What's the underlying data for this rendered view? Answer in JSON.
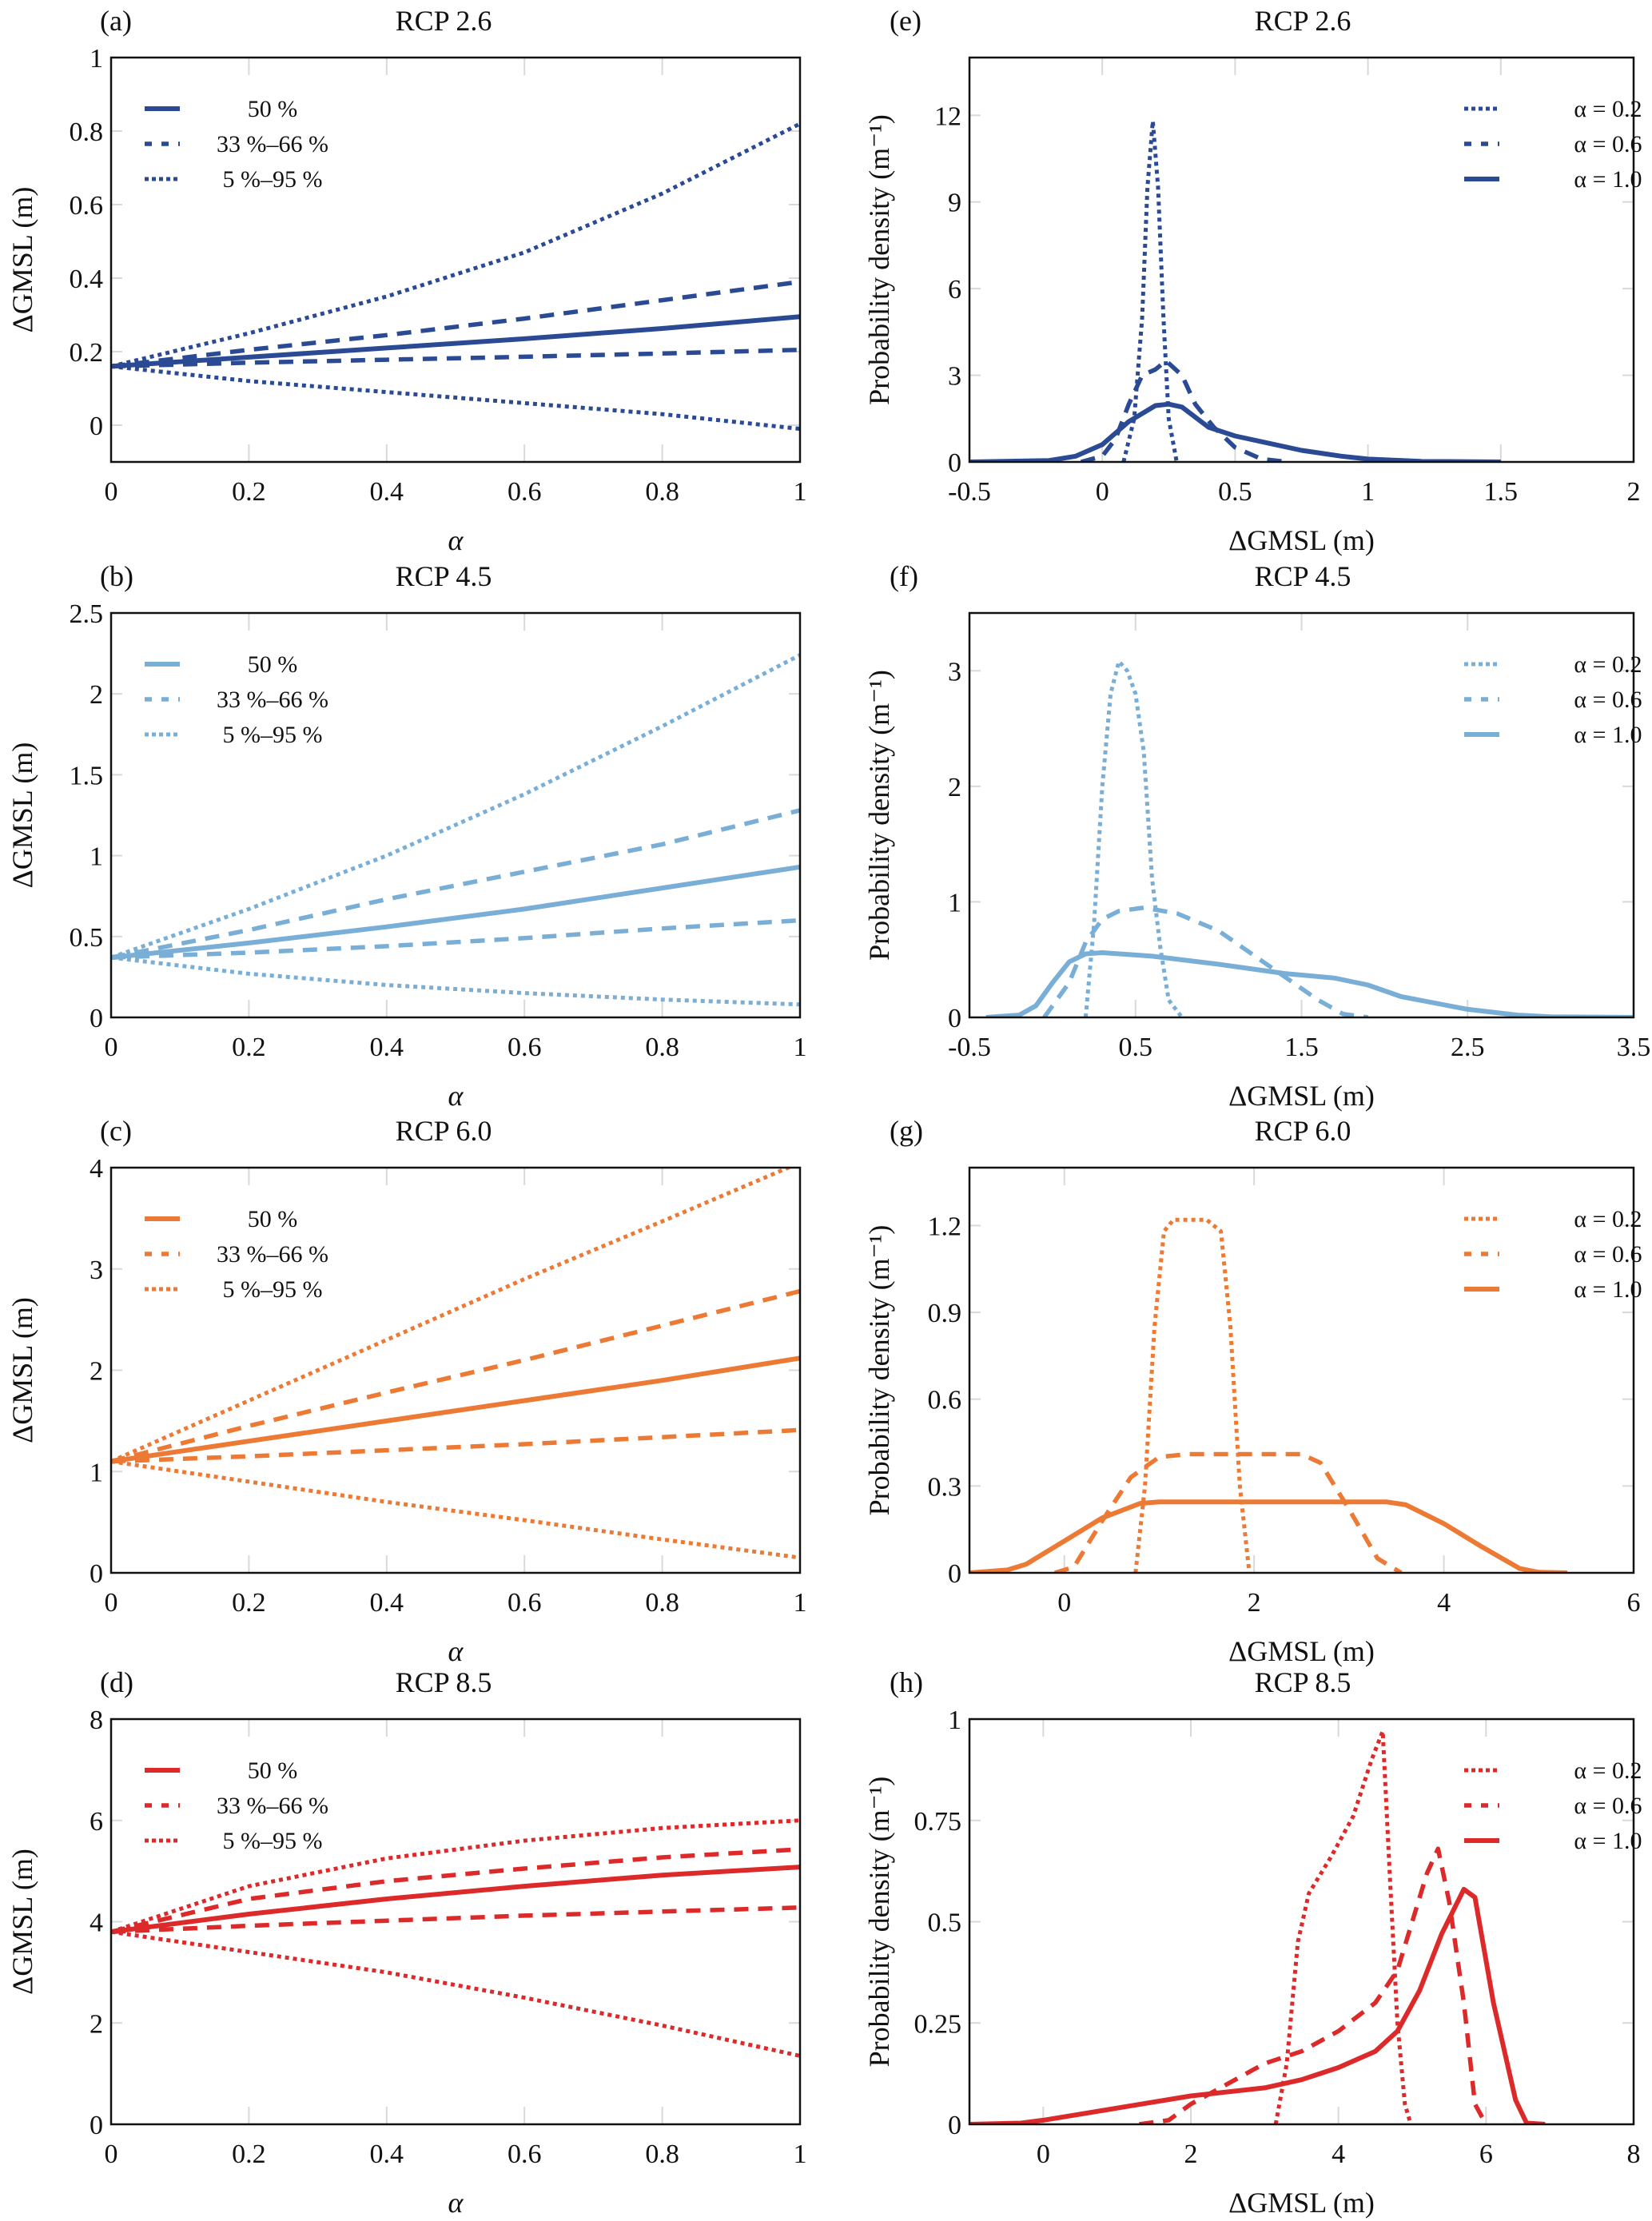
{
  "figure": {
    "colors": {
      "rcp26": "#2b4a94",
      "rcp45": "#79aed6",
      "rcp60": "#ec7a35",
      "rcp85": "#dc2a2a"
    }
  },
  "chart_data": [
    {
      "id": "a",
      "panel_tag": "(a)",
      "type": "line",
      "title": "RCP 2.6",
      "xlabel": "α",
      "ylabel": "ΔGMSL (m)",
      "xlim": [
        0,
        1
      ],
      "ylim": [
        -0.1,
        1
      ],
      "xticks": [
        0,
        0.2,
        0.4,
        0.6,
        0.8,
        1
      ],
      "xtick_labels": [
        "0",
        "0.2",
        "0.4",
        "0.6",
        "0.8",
        "1"
      ],
      "yticks": [
        0,
        0.2,
        0.4,
        0.6,
        0.8,
        1
      ],
      "ytick_labels": [
        "0",
        "0.2",
        "0.4",
        "0.6",
        "0.8",
        "1"
      ],
      "grid": true,
      "legend_position": "top-left",
      "color_key": "rcp26",
      "x": [
        0,
        0.2,
        0.4,
        0.6,
        0.8,
        1.0
      ],
      "series": [
        {
          "name": "50 %",
          "style": "solid",
          "legend": true,
          "values": [
            0.16,
            0.185,
            0.21,
            0.235,
            0.263,
            0.295
          ]
        },
        {
          "name": "33 %–66 %",
          "style": "dashed",
          "legend": true,
          "values": [
            0.16,
            0.205,
            0.245,
            0.29,
            0.34,
            0.39
          ]
        },
        {
          "name": "66 % lower",
          "style": "dashed",
          "legend": false,
          "values": [
            0.16,
            0.17,
            0.178,
            0.186,
            0.195,
            0.205
          ]
        },
        {
          "name": "5 %–95 %",
          "style": "dotted",
          "legend": true,
          "values": [
            0.16,
            0.25,
            0.35,
            0.47,
            0.63,
            0.82
          ]
        },
        {
          "name": "5 % lower",
          "style": "dotted",
          "legend": false,
          "values": [
            0.16,
            0.12,
            0.09,
            0.06,
            0.03,
            -0.01
          ]
        }
      ]
    },
    {
      "id": "b",
      "panel_tag": "(b)",
      "type": "line",
      "title": "RCP 4.5",
      "xlabel": "α",
      "ylabel": "ΔGMSL (m)",
      "xlim": [
        0,
        1
      ],
      "ylim": [
        0,
        2.5
      ],
      "xticks": [
        0,
        0.2,
        0.4,
        0.6,
        0.8,
        1
      ],
      "xtick_labels": [
        "0",
        "0.2",
        "0.4",
        "0.6",
        "0.8",
        "1"
      ],
      "yticks": [
        0,
        0.5,
        1,
        1.5,
        2,
        2.5
      ],
      "ytick_labels": [
        "0",
        "0.5",
        "1",
        "1.5",
        "2",
        "2.5"
      ],
      "grid": true,
      "legend_position": "top-left",
      "color_key": "rcp45",
      "x": [
        0,
        0.2,
        0.4,
        0.6,
        0.8,
        1.0
      ],
      "series": [
        {
          "name": "50 %",
          "style": "solid",
          "legend": true,
          "values": [
            0.37,
            0.46,
            0.56,
            0.67,
            0.8,
            0.93
          ]
        },
        {
          "name": "33 %–66 %",
          "style": "dashed",
          "legend": true,
          "values": [
            0.37,
            0.54,
            0.73,
            0.9,
            1.07,
            1.28
          ]
        },
        {
          "name": "66 % lower",
          "style": "dashed",
          "legend": false,
          "values": [
            0.37,
            0.4,
            0.44,
            0.49,
            0.55,
            0.6
          ]
        },
        {
          "name": "5 %–95 %",
          "style": "dotted",
          "legend": true,
          "values": [
            0.37,
            0.67,
            1.0,
            1.38,
            1.8,
            2.24
          ]
        },
        {
          "name": "5 % lower",
          "style": "dotted",
          "legend": false,
          "values": [
            0.37,
            0.27,
            0.2,
            0.15,
            0.11,
            0.08
          ]
        }
      ]
    },
    {
      "id": "c",
      "panel_tag": "(c)",
      "type": "line",
      "title": "RCP 6.0",
      "xlabel": "α",
      "ylabel": "ΔGMSL (m)",
      "xlim": [
        0,
        1
      ],
      "ylim": [
        0,
        4
      ],
      "xticks": [
        0,
        0.2,
        0.4,
        0.6,
        0.8,
        1
      ],
      "xtick_labels": [
        "0",
        "0.2",
        "0.4",
        "0.6",
        "0.8",
        "1"
      ],
      "yticks": [
        0,
        1,
        2,
        3,
        4
      ],
      "ytick_labels": [
        "0",
        "1",
        "2",
        "3",
        "4"
      ],
      "grid": true,
      "legend_position": "top-left",
      "color_key": "rcp60",
      "x": [
        0,
        0.2,
        0.4,
        0.6,
        0.8,
        1.0
      ],
      "series": [
        {
          "name": "50 %",
          "style": "solid",
          "legend": true,
          "values": [
            1.1,
            1.3,
            1.5,
            1.7,
            1.9,
            2.12
          ]
        },
        {
          "name": "33 %–66 %",
          "style": "dashed",
          "legend": true,
          "values": [
            1.1,
            1.45,
            1.78,
            2.1,
            2.44,
            2.78
          ]
        },
        {
          "name": "66 % lower",
          "style": "dashed",
          "legend": false,
          "values": [
            1.1,
            1.15,
            1.21,
            1.27,
            1.34,
            1.41
          ]
        },
        {
          "name": "5 %–95 %",
          "style": "dotted",
          "legend": true,
          "values": [
            1.1,
            1.7,
            2.3,
            2.9,
            3.47,
            4.05
          ]
        },
        {
          "name": "5 % lower",
          "style": "dotted",
          "legend": false,
          "values": [
            1.1,
            0.9,
            0.7,
            0.52,
            0.33,
            0.15
          ]
        }
      ]
    },
    {
      "id": "d",
      "panel_tag": "(d)",
      "type": "line",
      "title": "RCP 8.5",
      "xlabel": "α",
      "ylabel": "ΔGMSL (m)",
      "xlim": [
        0,
        1
      ],
      "ylim": [
        0,
        8
      ],
      "xticks": [
        0,
        0.2,
        0.4,
        0.6,
        0.8,
        1
      ],
      "xtick_labels": [
        "0",
        "0.2",
        "0.4",
        "0.6",
        "0.8",
        "1"
      ],
      "yticks": [
        0,
        2,
        4,
        6,
        8
      ],
      "ytick_labels": [
        "0",
        "2",
        "4",
        "6",
        "8"
      ],
      "grid": true,
      "legend_position": "top-left",
      "color_key": "rcp85",
      "x": [
        0,
        0.2,
        0.4,
        0.6,
        0.8,
        1.0
      ],
      "series": [
        {
          "name": "50 %",
          "style": "solid",
          "legend": true,
          "values": [
            3.8,
            4.15,
            4.45,
            4.7,
            4.92,
            5.08
          ]
        },
        {
          "name": "33 %–66 %",
          "style": "dashed",
          "legend": true,
          "values": [
            3.8,
            4.45,
            4.8,
            5.05,
            5.27,
            5.43
          ]
        },
        {
          "name": "66 % lower",
          "style": "dashed",
          "legend": false,
          "values": [
            3.8,
            3.92,
            4.02,
            4.12,
            4.2,
            4.28
          ]
        },
        {
          "name": "5 %–95 %",
          "style": "dotted",
          "legend": true,
          "values": [
            3.8,
            4.7,
            5.25,
            5.6,
            5.85,
            6.0
          ]
        },
        {
          "name": "5 % lower",
          "style": "dotted",
          "legend": false,
          "values": [
            3.8,
            3.4,
            3.0,
            2.5,
            1.95,
            1.35
          ]
        }
      ]
    },
    {
      "id": "e",
      "panel_tag": "(e)",
      "type": "line",
      "title": "RCP 2.6",
      "xlabel": "ΔGMSL (m)",
      "ylabel": "Probability density (m⁻¹)",
      "xlim": [
        -0.5,
        2
      ],
      "ylim": [
        0,
        14
      ],
      "xticks": [
        -0.5,
        0,
        0.5,
        1,
        1.5,
        2
      ],
      "xtick_labels": [
        "-0.5",
        "0",
        "0.5",
        "1",
        "1.5",
        "2"
      ],
      "yticks": [
        0,
        3,
        6,
        9,
        12
      ],
      "ytick_labels": [
        "0",
        "3",
        "6",
        "9",
        "12"
      ],
      "grid": true,
      "legend_position": "top-right",
      "color_key": "rcp26",
      "series": [
        {
          "name": "α = 0.2",
          "style": "dotted",
          "legend": true,
          "x": [
            0.08,
            0.12,
            0.15,
            0.17,
            0.19,
            0.21,
            0.23,
            0.25,
            0.28
          ],
          "y": [
            0,
            1.5,
            5,
            9.5,
            11.8,
            9.5,
            5,
            1.5,
            0
          ]
        },
        {
          "name": "α = 0.6",
          "style": "dashed",
          "legend": true,
          "x": [
            -0.08,
            0.0,
            0.05,
            0.1,
            0.15,
            0.2,
            0.24,
            0.3,
            0.35,
            0.42,
            0.5,
            0.6,
            0.7
          ],
          "y": [
            0,
            0.2,
            0.8,
            2.0,
            3.0,
            3.2,
            3.5,
            3.0,
            2.0,
            1.2,
            0.5,
            0.1,
            0
          ]
        },
        {
          "name": "α = 1.0",
          "style": "solid",
          "legend": true,
          "x": [
            -0.5,
            -0.2,
            -0.1,
            0.0,
            0.1,
            0.2,
            0.25,
            0.3,
            0.4,
            0.5,
            0.6,
            0.75,
            0.9,
            1.0,
            1.2,
            1.5
          ],
          "y": [
            0,
            0.05,
            0.2,
            0.6,
            1.4,
            1.95,
            2.0,
            1.9,
            1.2,
            0.9,
            0.7,
            0.4,
            0.2,
            0.1,
            0.02,
            0
          ]
        }
      ]
    },
    {
      "id": "f",
      "panel_tag": "(f)",
      "type": "line",
      "title": "RCP 4.5",
      "xlabel": "ΔGMSL (m)",
      "ylabel": "Probability density (m⁻¹)",
      "xlim": [
        -0.5,
        3.5
      ],
      "ylim": [
        0,
        3.5
      ],
      "xticks": [
        -0.5,
        0.5,
        1.5,
        2.5,
        3.5
      ],
      "xtick_labels": [
        "-0.5",
        "0.5",
        "1.5",
        "2.5",
        "3.5"
      ],
      "yticks": [
        0,
        1,
        2,
        3
      ],
      "ytick_labels": [
        "0",
        "1",
        "2",
        "3"
      ],
      "grid": true,
      "legend_position": "top-right",
      "color_key": "rcp45",
      "series": [
        {
          "name": "α = 0.2",
          "style": "dotted",
          "legend": true,
          "x": [
            0.2,
            0.25,
            0.3,
            0.35,
            0.4,
            0.45,
            0.5,
            0.55,
            0.6,
            0.65,
            0.7,
            0.78
          ],
          "y": [
            0,
            0.8,
            2.0,
            2.8,
            3.08,
            3.0,
            2.8,
            2.3,
            1.2,
            0.6,
            0.15,
            0
          ]
        },
        {
          "name": "α = 0.6",
          "style": "dashed",
          "legend": true,
          "x": [
            -0.05,
            0.1,
            0.2,
            0.3,
            0.4,
            0.55,
            0.75,
            1.0,
            1.2,
            1.4,
            1.6,
            1.75,
            1.9
          ],
          "y": [
            0,
            0.3,
            0.65,
            0.85,
            0.92,
            0.95,
            0.9,
            0.75,
            0.55,
            0.35,
            0.15,
            0.03,
            0
          ]
        },
        {
          "name": "α = 1.0",
          "style": "solid",
          "legend": true,
          "x": [
            -0.4,
            -0.2,
            -0.1,
            0.0,
            0.1,
            0.2,
            0.3,
            0.6,
            1.0,
            1.4,
            1.7,
            1.9,
            2.1,
            2.5,
            2.8,
            3.0,
            3.5
          ],
          "y": [
            0,
            0.02,
            0.1,
            0.3,
            0.48,
            0.55,
            0.56,
            0.53,
            0.46,
            0.38,
            0.34,
            0.28,
            0.18,
            0.07,
            0.02,
            0.005,
            0
          ]
        }
      ]
    },
    {
      "id": "g",
      "panel_tag": "(g)",
      "type": "line",
      "title": "RCP 6.0",
      "xlabel": "ΔGMSL (m)",
      "ylabel": "Probability density (m⁻¹)",
      "xlim": [
        -1,
        6
      ],
      "ylim": [
        0,
        1.4
      ],
      "xticks": [
        0,
        2,
        4,
        6
      ],
      "xtick_labels": [
        "0",
        "2",
        "4",
        "6"
      ],
      "yticks": [
        0,
        0.3,
        0.6,
        0.9,
        1.2
      ],
      "ytick_labels": [
        "0",
        "0.3",
        "0.6",
        "0.9",
        "1.2"
      ],
      "grid": true,
      "legend_position": "top-right",
      "color_key": "rcp60",
      "series": [
        {
          "name": "α = 0.2",
          "style": "dotted",
          "legend": true,
          "x": [
            0.75,
            0.85,
            0.95,
            1.05,
            1.15,
            1.5,
            1.65,
            1.75,
            1.85,
            1.95
          ],
          "y": [
            0,
            0.3,
            0.85,
            1.18,
            1.22,
            1.22,
            1.18,
            0.85,
            0.3,
            0
          ]
        },
        {
          "name": "α = 0.6",
          "style": "dashed",
          "legend": true,
          "x": [
            -0.1,
            0.1,
            0.4,
            0.7,
            1.0,
            1.3,
            2.5,
            2.7,
            3.0,
            3.3,
            3.55
          ],
          "y": [
            0,
            0.02,
            0.18,
            0.33,
            0.4,
            0.41,
            0.41,
            0.38,
            0.22,
            0.05,
            0
          ]
        },
        {
          "name": "α = 1.0",
          "style": "solid",
          "legend": true,
          "x": [
            -1,
            -0.6,
            -0.4,
            0.0,
            0.4,
            0.8,
            1.0,
            3.4,
            3.6,
            4.0,
            4.4,
            4.8,
            5.0,
            5.3
          ],
          "y": [
            0,
            0.01,
            0.03,
            0.11,
            0.19,
            0.24,
            0.245,
            0.245,
            0.235,
            0.17,
            0.09,
            0.015,
            0.002,
            0
          ]
        }
      ]
    },
    {
      "id": "h",
      "panel_tag": "(h)",
      "type": "line",
      "title": "RCP 8.5",
      "xlabel": "ΔGMSL (m)",
      "ylabel": "Probability density (m⁻¹)",
      "xlim": [
        -1,
        8
      ],
      "ylim": [
        0,
        1
      ],
      "xticks": [
        0,
        2,
        4,
        6,
        8
      ],
      "xtick_labels": [
        "0",
        "2",
        "4",
        "6",
        "8"
      ],
      "yticks": [
        0,
        0.25,
        0.5,
        0.75,
        1
      ],
      "ytick_labels": [
        "0",
        "0.25",
        "0.5",
        "0.75",
        "1"
      ],
      "grid": true,
      "legend_position": "top-right",
      "color_key": "rcp85",
      "series": [
        {
          "name": "α = 0.2",
          "style": "dotted",
          "legend": true,
          "x": [
            3.15,
            3.3,
            3.45,
            3.6,
            3.9,
            4.2,
            4.45,
            4.6,
            4.7,
            4.8,
            4.9,
            4.98
          ],
          "y": [
            0,
            0.15,
            0.45,
            0.57,
            0.66,
            0.76,
            0.9,
            0.97,
            0.6,
            0.25,
            0.05,
            0
          ]
        },
        {
          "name": "α = 0.6",
          "style": "dashed",
          "legend": true,
          "x": [
            1.3,
            1.7,
            2.0,
            2.5,
            3.0,
            3.5,
            4.0,
            4.5,
            4.8,
            5.0,
            5.2,
            5.35,
            5.5,
            5.7,
            5.85,
            6.0
          ],
          "y": [
            0,
            0.01,
            0.05,
            0.1,
            0.15,
            0.18,
            0.23,
            0.3,
            0.38,
            0.5,
            0.62,
            0.68,
            0.55,
            0.3,
            0.05,
            0
          ]
        },
        {
          "name": "α = 1.0",
          "style": "solid",
          "legend": true,
          "x": [
            -1,
            -0.3,
            0.0,
            1.0,
            2.0,
            3.0,
            3.5,
            4.0,
            4.5,
            4.8,
            5.1,
            5.4,
            5.7,
            5.85,
            6.1,
            6.4,
            6.55,
            6.8
          ],
          "y": [
            0,
            0.003,
            0.01,
            0.04,
            0.07,
            0.09,
            0.11,
            0.14,
            0.18,
            0.23,
            0.33,
            0.47,
            0.58,
            0.56,
            0.3,
            0.06,
            0.003,
            0
          ]
        }
      ]
    }
  ]
}
